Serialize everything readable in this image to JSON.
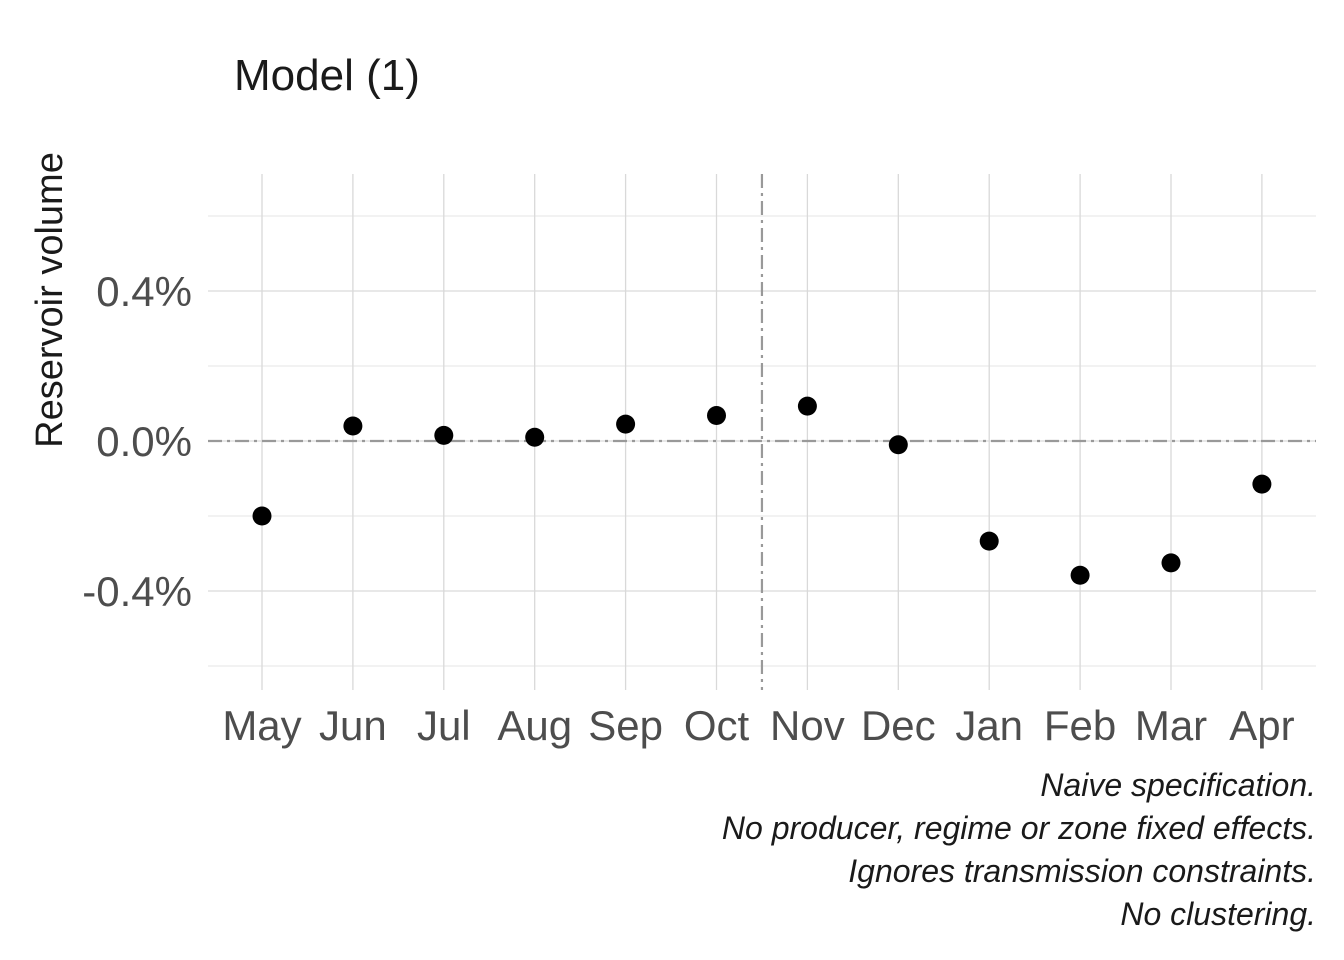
{
  "chart_data": {
    "type": "scatter",
    "title": "Model (1)",
    "xlabel": "",
    "ylabel": "Reservoir volume",
    "categories": [
      "May",
      "Jun",
      "Jul",
      "Aug",
      "Sep",
      "Oct",
      "Nov",
      "Dec",
      "Jan",
      "Feb",
      "Mar",
      "Apr"
    ],
    "values": [
      -0.2,
      0.04,
      0.015,
      0.01,
      0.045,
      0.068,
      0.093,
      -0.01,
      -0.267,
      -0.358,
      -0.325,
      -0.115
    ],
    "ylim": [
      -0.6,
      0.7
    ],
    "yticks": [
      {
        "value": 0.4,
        "label": "0.4%"
      },
      {
        "value": 0.0,
        "label": "0.0%"
      },
      {
        "value": -0.4,
        "label": "-0.4%"
      }
    ],
    "yminor": [
      0.6,
      0.2,
      -0.2,
      -0.6
    ],
    "reference_lines": {
      "horizontal_value": 0.0,
      "vertical_between": [
        "Oct",
        "Nov"
      ]
    },
    "grid": true,
    "legend": "none",
    "point_color": "#000000",
    "caption": [
      "Naive specification.",
      "No producer, regime or zone fixed effects.",
      "Ignores transmission constraints.",
      "No clustering."
    ]
  }
}
